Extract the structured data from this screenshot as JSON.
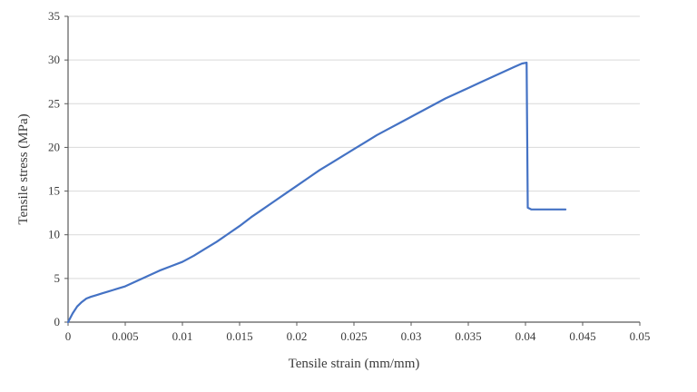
{
  "chart_data": {
    "type": "line",
    "title": "",
    "xlabel": "Tensile strain (mm/mm)",
    "ylabel": "Tensile stress (MPa)",
    "xlim": [
      0,
      0.05
    ],
    "ylim": [
      0,
      35
    ],
    "x_ticks": [
      0,
      0.005,
      0.01,
      0.015,
      0.02,
      0.025,
      0.03,
      0.035,
      0.04,
      0.045,
      0.05
    ],
    "x_tick_labels": [
      "0",
      "0.005",
      "0.01",
      "0.015",
      "0.02",
      "0.025",
      "0.03",
      "0.035",
      "0.04",
      "0.045",
      "0.05"
    ],
    "y_ticks": [
      0,
      5,
      10,
      15,
      20,
      25,
      30,
      35
    ],
    "y_tick_labels": [
      "0",
      "5",
      "10",
      "15",
      "20",
      "25",
      "30",
      "35"
    ],
    "grid": "horizontal",
    "legend": "none",
    "line_color": "#4472c4",
    "gridline_color": "#d9d9d9",
    "axis_color": "#595959",
    "text_color": "#3b3b3b",
    "series": [
      {
        "name": "tensile-stress-strain-curve",
        "points": [
          [
            0,
            0
          ],
          [
            0.0004,
            1.0
          ],
          [
            0.0008,
            1.8
          ],
          [
            0.0012,
            2.3
          ],
          [
            0.0016,
            2.7
          ],
          [
            0.002,
            2.9
          ],
          [
            0.0025,
            3.1
          ],
          [
            0.003,
            3.3
          ],
          [
            0.0035,
            3.5
          ],
          [
            0.004,
            3.7
          ],
          [
            0.0045,
            3.9
          ],
          [
            0.005,
            4.1
          ],
          [
            0.006,
            4.7
          ],
          [
            0.007,
            5.3
          ],
          [
            0.008,
            5.9
          ],
          [
            0.009,
            6.4
          ],
          [
            0.01,
            6.9
          ],
          [
            0.011,
            7.6
          ],
          [
            0.012,
            8.4
          ],
          [
            0.013,
            9.2
          ],
          [
            0.014,
            10.1
          ],
          [
            0.015,
            11.0
          ],
          [
            0.016,
            12.0
          ],
          [
            0.017,
            12.9
          ],
          [
            0.018,
            13.8
          ],
          [
            0.019,
            14.7
          ],
          [
            0.02,
            15.6
          ],
          [
            0.021,
            16.5
          ],
          [
            0.022,
            17.4
          ],
          [
            0.023,
            18.2
          ],
          [
            0.024,
            19.0
          ],
          [
            0.025,
            19.8
          ],
          [
            0.026,
            20.6
          ],
          [
            0.027,
            21.4
          ],
          [
            0.028,
            22.1
          ],
          [
            0.029,
            22.8
          ],
          [
            0.03,
            23.5
          ],
          [
            0.031,
            24.2
          ],
          [
            0.032,
            24.9
          ],
          [
            0.033,
            25.6
          ],
          [
            0.034,
            26.2
          ],
          [
            0.035,
            26.8
          ],
          [
            0.036,
            27.4
          ],
          [
            0.037,
            28.0
          ],
          [
            0.038,
            28.6
          ],
          [
            0.039,
            29.2
          ],
          [
            0.0397,
            29.6
          ],
          [
            0.0401,
            29.7
          ],
          [
            0.0402,
            13.1
          ],
          [
            0.0405,
            12.9
          ],
          [
            0.041,
            12.9
          ],
          [
            0.042,
            12.9
          ],
          [
            0.043,
            12.9
          ],
          [
            0.0435,
            12.9
          ]
        ]
      }
    ]
  }
}
